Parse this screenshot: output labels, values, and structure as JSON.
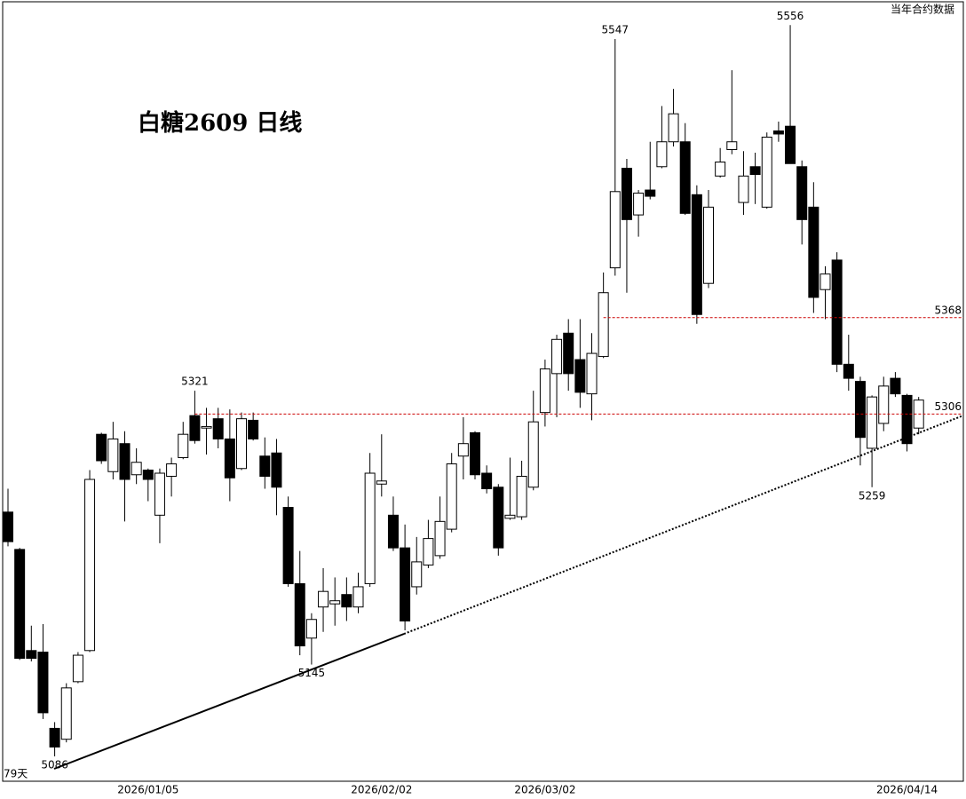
{
  "chart_data": {
    "type": "candlestick",
    "title": "白糖2609 日线",
    "note": "当年合约数据",
    "duration_label": "79天",
    "categories": [
      null,
      null,
      null,
      null,
      null,
      null,
      null,
      null,
      null,
      null,
      null,
      null,
      "2026/01/05",
      null,
      null,
      null,
      null,
      null,
      null,
      null,
      null,
      null,
      null,
      null,
      null,
      null,
      null,
      null,
      null,
      null,
      null,
      null,
      "2026/02/02",
      null,
      null,
      null,
      null,
      null,
      null,
      null,
      null,
      null,
      null,
      null,
      null,
      null,
      "2026/03/02",
      null,
      null,
      null,
      null,
      null,
      null,
      null,
      null,
      null,
      null,
      null,
      null,
      null,
      null,
      null,
      null,
      null,
      null,
      null,
      null,
      null,
      null,
      null,
      null,
      null,
      null,
      null,
      null,
      null,
      null,
      "2026/04/14",
      null
    ],
    "open": [
      5243,
      5219,
      5154,
      5153,
      5104,
      5097,
      5134,
      5154,
      5293,
      5269,
      5287,
      5267,
      5270,
      5241,
      5266,
      5278,
      5305,
      5297,
      5303,
      5290,
      5271,
      5302,
      5279,
      5281,
      5246,
      5197,
      5162,
      5182,
      5184,
      5190,
      5182,
      5197,
      5261,
      5241,
      5220,
      5195,
      5209,
      5215,
      5232,
      5279,
      5294,
      5268,
      5259,
      5239,
      5240,
      5259,
      5307,
      5332,
      5358,
      5341,
      5319,
      5343,
      5400,
      5464,
      5434,
      5450,
      5465,
      5481,
      5481,
      5447,
      5390,
      5459,
      5476,
      5442,
      5465,
      5439,
      5488,
      5491,
      5465,
      5439,
      5386,
      5405,
      5338,
      5327,
      5284,
      5300,
      5329,
      5318,
      5297
    ],
    "high": [
      5258,
      5220,
      5170,
      5171,
      5108,
      5133,
      5153,
      5270,
      5294,
      5301,
      5295,
      5284,
      5271,
      5271,
      5278,
      5301,
      5321,
      5310,
      5310,
      5309,
      5307,
      5307,
      5291,
      5290,
      5253,
      5218,
      5178,
      5207,
      5201,
      5201,
      5204,
      5281,
      5293,
      5253,
      5235,
      5227,
      5238,
      5253,
      5281,
      5304,
      5295,
      5273,
      5261,
      5278,
      5276,
      5321,
      5341,
      5357,
      5367,
      5367,
      5358,
      5397,
      5547,
      5470,
      5450,
      5481,
      5504,
      5515,
      5493,
      5453,
      5450,
      5477,
      5527,
      5475,
      5474,
      5487,
      5494,
      5556,
      5469,
      5455,
      5401,
      5410,
      5357,
      5330,
      5318,
      5330,
      5333,
      5319,
      5317
    ],
    "low": [
      5221,
      5148,
      5147,
      5110,
      5086,
      5095,
      5133,
      5153,
      5274,
      5264,
      5237,
      5261,
      5250,
      5223,
      5253,
      5277,
      5287,
      5280,
      5284,
      5250,
      5270,
      5289,
      5258,
      5241,
      5195,
      5151,
      5145,
      5166,
      5170,
      5173,
      5178,
      5195,
      5253,
      5218,
      5167,
      5190,
      5207,
      5213,
      5230,
      5264,
      5264,
      5255,
      5215,
      5238,
      5238,
      5257,
      5298,
      5304,
      5321,
      5310,
      5302,
      5342,
      5395,
      5384,
      5420,
      5444,
      5464,
      5478,
      5434,
      5364,
      5387,
      5458,
      5473,
      5434,
      5441,
      5438,
      5481,
      5467,
      5415,
      5371,
      5367,
      5333,
      5321,
      5273,
      5259,
      5295,
      5317,
      5282,
      5293
    ],
    "close": [
      5224,
      5149,
      5149,
      5114,
      5092,
      5130,
      5151,
      5264,
      5276,
      5290,
      5264,
      5275,
      5264,
      5268,
      5274,
      5293,
      5289,
      5298,
      5290,
      5265,
      5303,
      5290,
      5266,
      5259,
      5197,
      5157,
      5174,
      5192,
      5186,
      5182,
      5195,
      5268,
      5263,
      5220,
      5173,
      5211,
      5226,
      5237,
      5274,
      5287,
      5267,
      5258,
      5220,
      5241,
      5266,
      5301,
      5335,
      5354,
      5332,
      5320,
      5345,
      5384,
      5449,
      5431,
      5448,
      5446,
      5481,
      5499,
      5435,
      5370,
      5439,
      5468,
      5481,
      5459,
      5460,
      5484,
      5486,
      5467,
      5431,
      5381,
      5396,
      5338,
      5329,
      5291,
      5317,
      5324,
      5319,
      5287,
      5315
    ],
    "up_color": "#ffffff",
    "down_color": "#000000",
    "ylim": [
      5070,
      5571
    ],
    "levels": [
      5368,
      5306
    ],
    "level_color": "#cc0000",
    "extreme_labels": [
      5547,
      5556,
      5321,
      5145,
      5086,
      5259
    ]
  }
}
